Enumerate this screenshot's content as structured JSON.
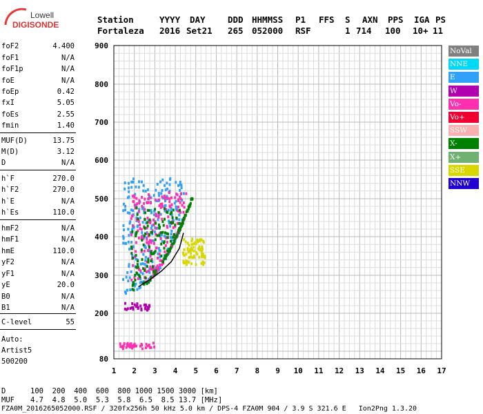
{
  "logo": {
    "line1": "Lowell",
    "line2": "DIGISONDE"
  },
  "header": {
    "labels": [
      "Station",
      "YYYY",
      "DAY",
      "DDD",
      "HHMMSS",
      "P1",
      "FFS",
      "S",
      "AXN",
      "PPS",
      "IGA",
      "PS"
    ],
    "values": [
      "Fortaleza",
      "2016",
      "Set21",
      "265",
      "052000",
      "RSF",
      "1",
      "714",
      "100",
      "10+",
      "11"
    ]
  },
  "params": [
    {
      "k": "foF2",
      "v": "4.400"
    },
    {
      "k": "foF1",
      "v": "N/A"
    },
    {
      "k": "foF1p",
      "v": "N/A"
    },
    {
      "k": "foE",
      "v": "N/A"
    },
    {
      "k": "foEp",
      "v": "0.42"
    },
    {
      "k": "fxI",
      "v": "5.05"
    },
    {
      "k": "foEs",
      "v": "2.55"
    },
    {
      "k": "fmin",
      "v": "1.40"
    },
    {
      "k": "MUF(D)",
      "v": "13.75"
    },
    {
      "k": "M(D)",
      "v": "3.12"
    },
    {
      "k": "D",
      "v": "N/A"
    },
    {
      "k": "h`F",
      "v": "270.0"
    },
    {
      "k": "h`F2",
      "v": "270.0"
    },
    {
      "k": "h`E",
      "v": "N/A"
    },
    {
      "k": "h`Es",
      "v": "110.0"
    },
    {
      "k": "hmF2",
      "v": "N/A"
    },
    {
      "k": "hmF1",
      "v": "N/A"
    },
    {
      "k": "hmE",
      "v": "110.0"
    },
    {
      "k": "yF2",
      "v": "N/A"
    },
    {
      "k": "yF1",
      "v": "N/A"
    },
    {
      "k": "yE",
      "v": "20.0"
    },
    {
      "k": "B0",
      "v": "N/A"
    },
    {
      "k": "B1",
      "v": "N/A"
    },
    {
      "k": "C-level",
      "v": "55"
    }
  ],
  "auto": {
    "l1": "Auto:",
    "l2": "Artist5",
    "l3": "500200"
  },
  "table": {
    "row1_label": "D",
    "row1": "100  200  400  600  800 1000 1500 3000 [km]",
    "row2_label": "MUF",
    "row2": "4.7  4.8  5.0  5.3  5.8  6.5  8.5 13.7 [MHz]"
  },
  "footer": "FZA0M_2016265052000.RSF / 320fx256h 50 kHz 5.0 km / DPS-4 FZA0M 904 / 3.9 S 321.6 E   Ion2Png 1.3.20",
  "legend": [
    {
      "label": "NoVal",
      "color": "#808080"
    },
    {
      "label": "NNE",
      "color": "#00d8f8"
    },
    {
      "label": "E",
      "color": "#30a0f8"
    },
    {
      "label": "W",
      "color": "#b000b0"
    },
    {
      "label": "Vo-",
      "color": "#ff30b0"
    },
    {
      "label": "Vo+",
      "color": "#f00030"
    },
    {
      "label": "SSW",
      "color": "#f8b0b0"
    },
    {
      "label": "X-",
      "color": "#008000"
    },
    {
      "label": "X+",
      "color": "#70b070"
    },
    {
      "label": "SSE",
      "color": "#d8d800"
    },
    {
      "label": "NNW",
      "color": "#2000d0"
    }
  ],
  "chart_data": {
    "type": "scatter",
    "xlim": [
      1,
      17
    ],
    "ylim": [
      80,
      900
    ],
    "xticks": [
      1,
      2,
      3,
      4,
      5,
      6,
      7,
      8,
      9,
      10,
      11,
      12,
      13,
      14,
      15,
      16,
      17
    ],
    "yticks": [
      80,
      200,
      300,
      400,
      500,
      600,
      700,
      800,
      900
    ],
    "grid": true,
    "legend_position": "right",
    "clusters": [
      {
        "mode": "E",
        "x_range": [
          1.4,
          4.4
        ],
        "y_range": [
          250,
          560
        ],
        "color_name": "E"
      },
      {
        "mode": "Vo-",
        "x_range": [
          1.8,
          4.5
        ],
        "y_range": [
          280,
          520
        ],
        "color_name": "Vo-"
      },
      {
        "mode": "X-",
        "x_range": [
          1.8,
          4.8
        ],
        "y_range": [
          260,
          480
        ],
        "color_name": "X-"
      },
      {
        "mode": "SSE",
        "x_range": [
          4.3,
          5.4
        ],
        "y_range": [
          330,
          400
        ],
        "color_name": "SSE"
      },
      {
        "mode": "Es",
        "x_range": [
          1.2,
          3.0
        ],
        "y_range": [
          110,
          125
        ],
        "color_name": "Vo-"
      },
      {
        "mode": "W",
        "x_range": [
          1.5,
          2.7
        ],
        "y_range": [
          210,
          230
        ],
        "color_name": "W"
      }
    ],
    "trace_line": [
      {
        "x": 2.2,
        "y": 270
      },
      {
        "x": 2.8,
        "y": 290
      },
      {
        "x": 3.3,
        "y": 310
      },
      {
        "x": 3.8,
        "y": 335
      },
      {
        "x": 4.2,
        "y": 370
      },
      {
        "x": 4.4,
        "y": 410
      }
    ]
  }
}
